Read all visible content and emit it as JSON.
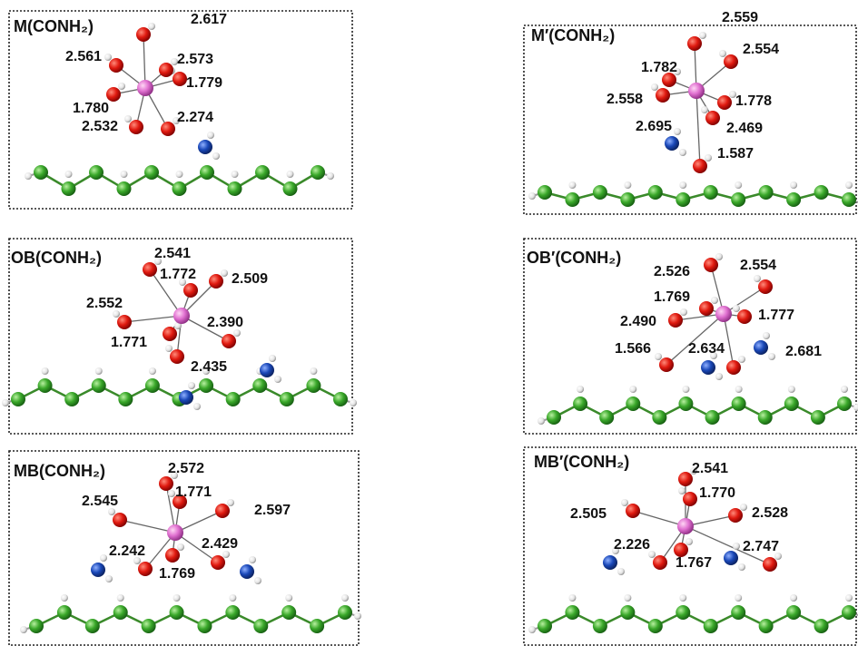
{
  "panels": [
    {
      "title": "M(CONH₂)",
      "labels": [
        "2.617",
        "2.561",
        "2.573",
        "1.779",
        "1.780",
        "2.532",
        "2.274"
      ]
    },
    {
      "title": "M′(CONH₂)",
      "labels": [
        "2.559",
        "2.554",
        "1.782",
        "2.558",
        "1.778",
        "2.469",
        "2.695",
        "1.587"
      ]
    },
    {
      "title": "OB(CONH₂)",
      "labels": [
        "2.541",
        "1.772",
        "2.509",
        "2.552",
        "2.390",
        "1.771",
        "2.435"
      ]
    },
    {
      "title": "OB′(CONH₂)",
      "labels": [
        "2.526",
        "2.554",
        "1.769",
        "2.490",
        "1.777",
        "1.566",
        "2.634",
        "2.681"
      ]
    },
    {
      "title": "MB(CONH₂)",
      "labels": [
        "2.572",
        "1.771",
        "2.597",
        "2.545",
        "2.242",
        "2.429",
        "1.769"
      ]
    },
    {
      "title": "MB′(CONH₂)",
      "labels": [
        "2.541",
        "1.770",
        "2.528",
        "2.505",
        "2.226",
        "2.747",
        "1.767"
      ]
    }
  ]
}
